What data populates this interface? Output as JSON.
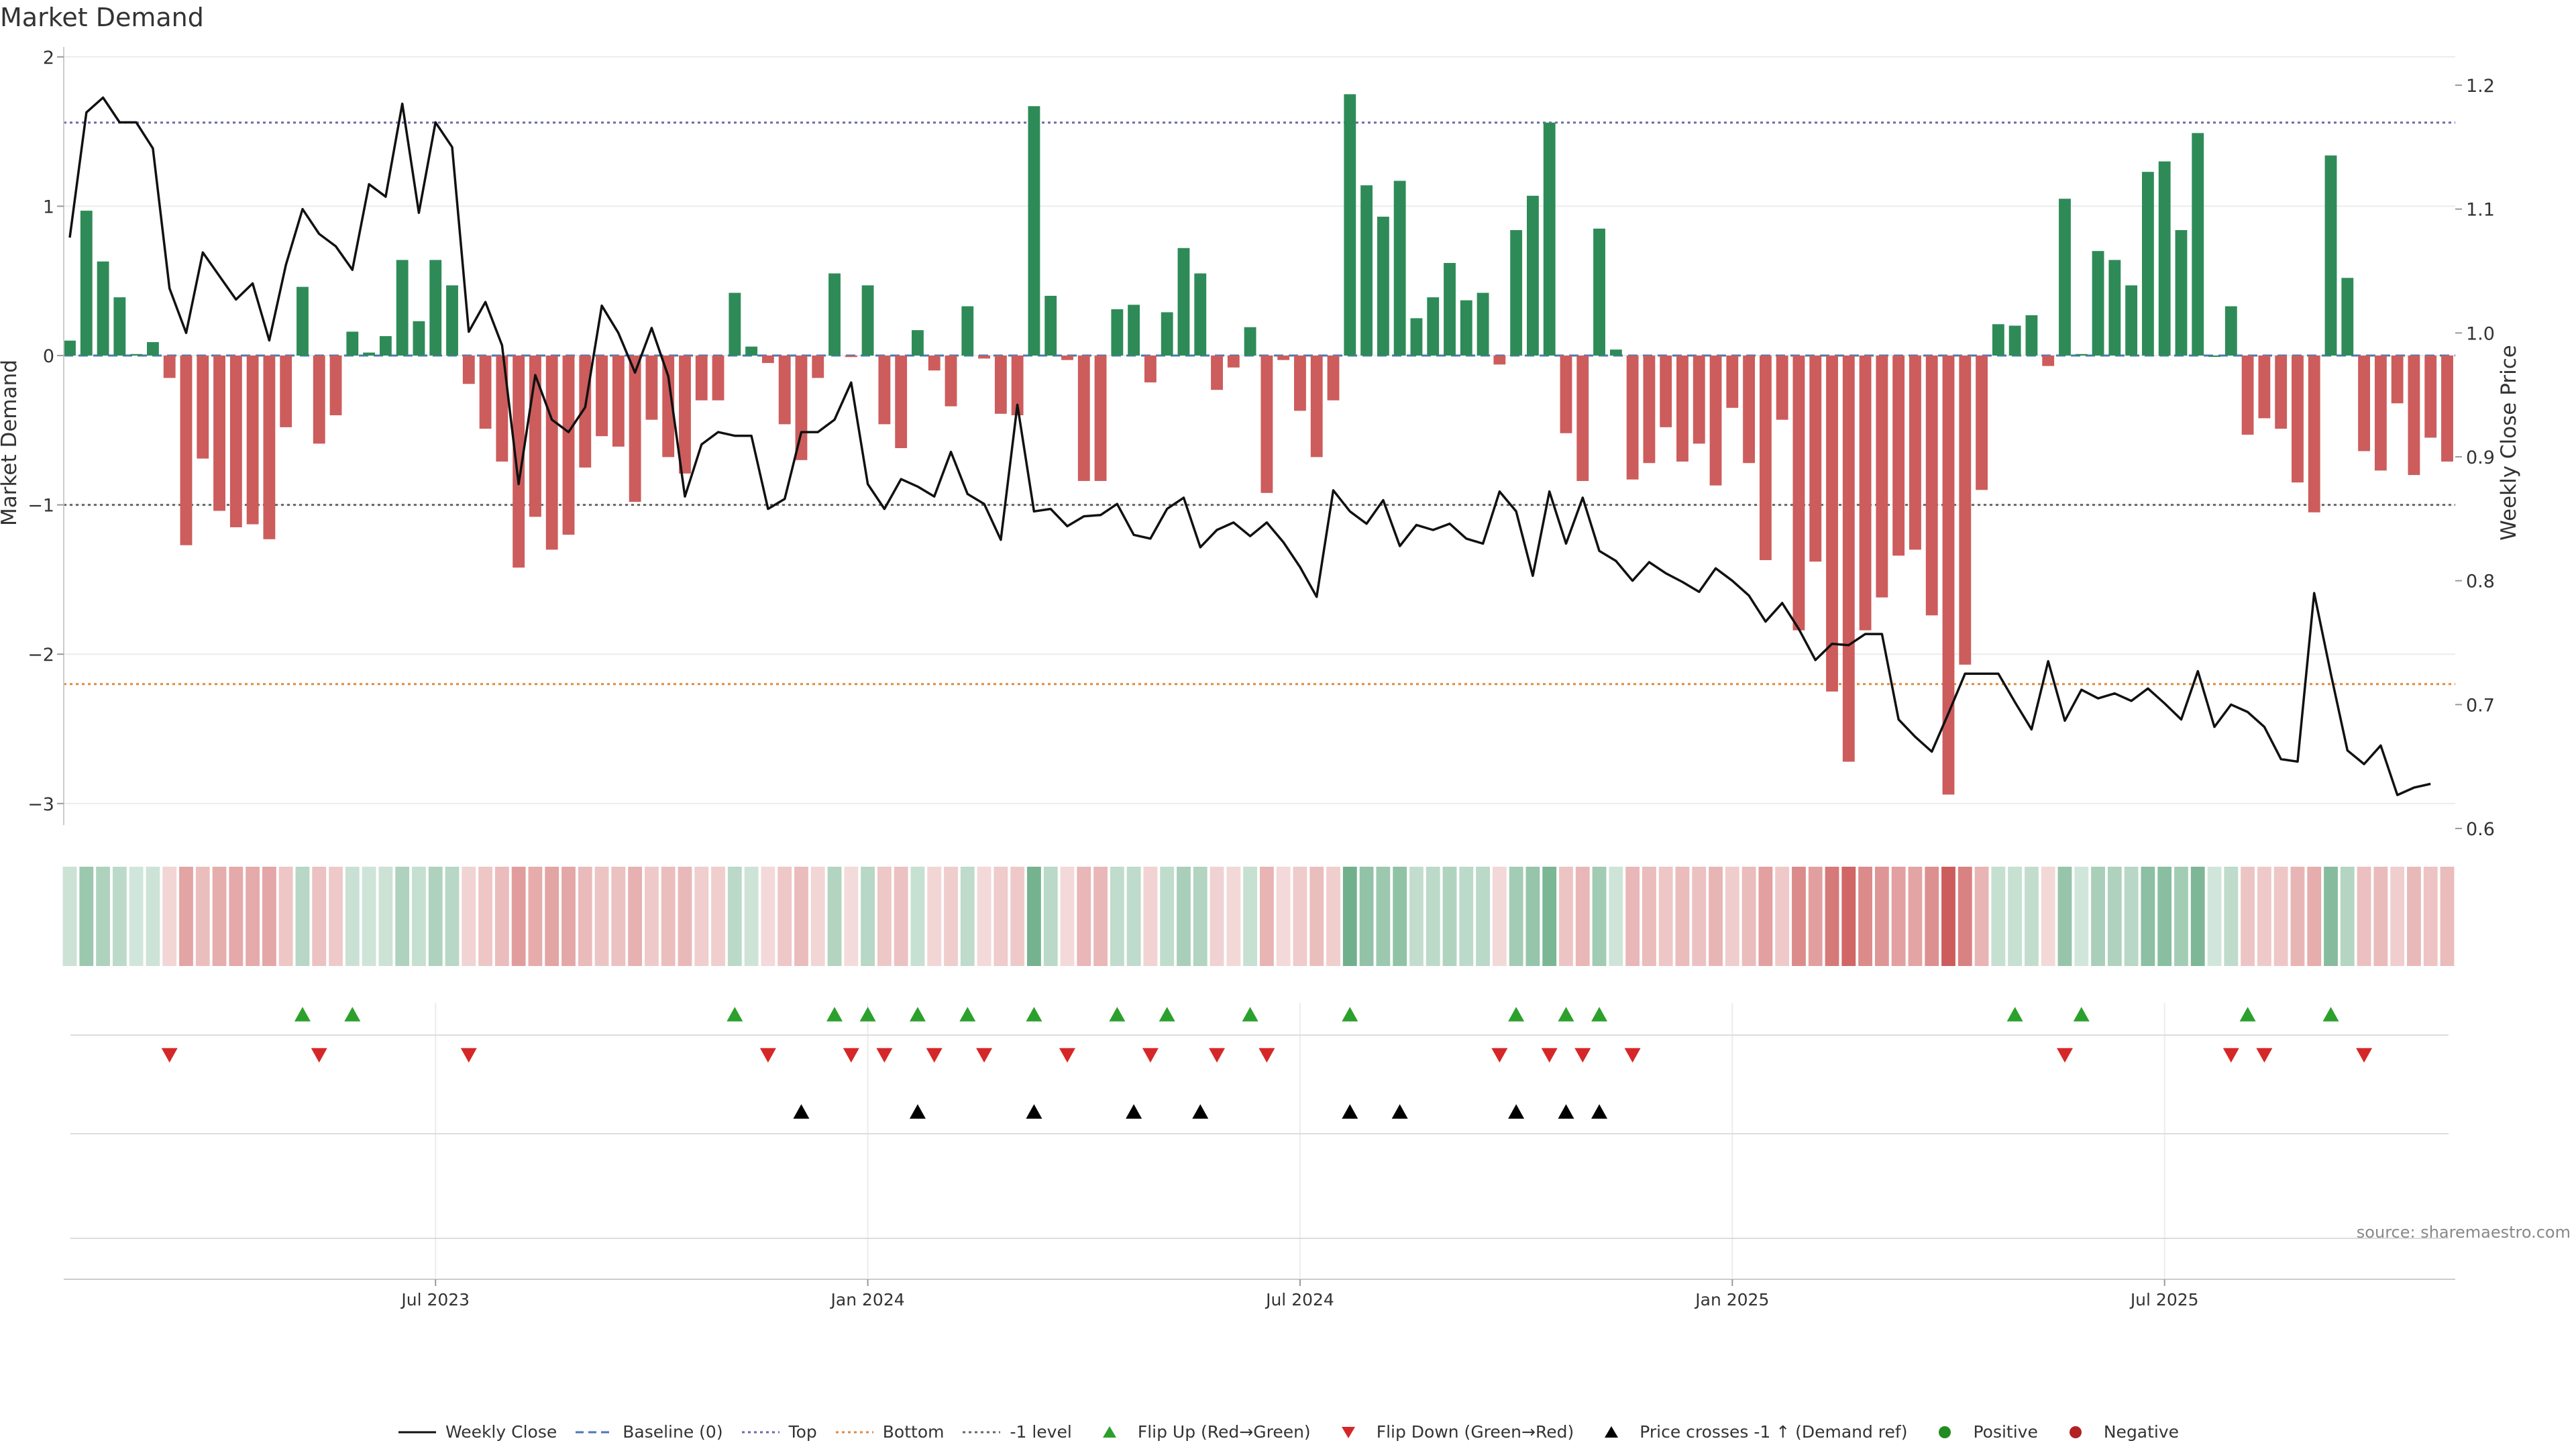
{
  "title": "Market Demand",
  "source": "source: sharemaestro.com",
  "colors": {
    "positive_bar": "#2e8b57",
    "negative_bar": "#cd5c5c",
    "line": "#111111",
    "top_line": "#6a6aa8",
    "bottom_line": "#e08a3c",
    "minus1_line": "#666666",
    "flip_up": "#2ca02c",
    "flip_down": "#d62728",
    "cross": "#000000",
    "positive_dot": "#228b22",
    "negative_dot": "#b22222"
  },
  "legend": [
    {
      "label": "Weekly Close",
      "kind": "line",
      "color": "#111111",
      "dash": "none"
    },
    {
      "label": "Baseline (0)",
      "kind": "line",
      "color": "#4a78b5",
      "dash": "dashed"
    },
    {
      "label": "Top",
      "kind": "line",
      "color": "#6a6aa8",
      "dash": "dotted"
    },
    {
      "label": "Bottom",
      "kind": "line",
      "color": "#e08a3c",
      "dash": "dotted"
    },
    {
      "label": "-1 level",
      "kind": "line",
      "color": "#666666",
      "dash": "dotted"
    },
    {
      "label": "Flip Up (Red→Green)",
      "kind": "tri-up",
      "color": "#2ca02c"
    },
    {
      "label": "Flip Down (Green→Red)",
      "kind": "tri-down",
      "color": "#d62728"
    },
    {
      "label": "Price crosses -1 ↑ (Demand ref)",
      "kind": "tri-up",
      "color": "#000000"
    },
    {
      "label": "Positive",
      "kind": "dot",
      "color": "#228b22"
    },
    {
      "label": "Negative",
      "kind": "dot",
      "color": "#b22222"
    }
  ],
  "chart_data": {
    "type": "bar",
    "x_tick_labels": [
      "Jul 2023",
      "Jan 2024",
      "Jul 2024",
      "Jan 2025",
      "Jul 2025"
    ],
    "x_tick_weeks": [
      22,
      48,
      74,
      100,
      126
    ],
    "ylabel_left": "Market Demand",
    "ylabel_right": "Weekly Close Price",
    "ylim_left": [
      -3.1,
      2.0
    ],
    "ylim_right": [
      0.6,
      1.23
    ],
    "yticks_left": [
      2,
      1,
      0,
      -1,
      -2,
      -3
    ],
    "yticks_right": [
      1.2,
      1.1,
      1.0,
      0.9,
      0.8,
      0.7,
      0.6
    ],
    "reference_levels": {
      "top": 1.56,
      "bottom": -2.2,
      "minus1": -1.0,
      "baseline": 0
    },
    "grid": true,
    "demand": [
      0.1,
      0.97,
      0.63,
      0.39,
      0.01,
      0.09,
      -0.15,
      -1.27,
      -0.69,
      -1.04,
      -1.15,
      -1.13,
      -1.23,
      -0.48,
      0.46,
      -0.59,
      -0.4,
      0.16,
      0.02,
      0.13,
      0.64,
      0.23,
      0.64,
      0.47,
      -0.19,
      -0.49,
      -0.71,
      -1.42,
      -1.08,
      -1.3,
      -1.2,
      -0.75,
      -0.54,
      -0.61,
      -0.98,
      -0.43,
      -0.68,
      -0.79,
      -0.3,
      -0.3,
      0.42,
      0.06,
      -0.05,
      -0.46,
      -0.7,
      -0.15,
      0.55,
      -0.01,
      0.47,
      -0.46,
      -0.62,
      0.17,
      -0.1,
      -0.34,
      0.33,
      -0.02,
      -0.39,
      -0.4,
      1.67,
      0.4,
      -0.03,
      -0.84,
      -0.84,
      0.31,
      0.34,
      -0.18,
      0.29,
      0.72,
      0.55,
      -0.23,
      -0.08,
      0.19,
      -0.92,
      -0.03,
      -0.37,
      -0.68,
      -0.3,
      1.75,
      1.14,
      0.93,
      1.17,
      0.25,
      0.39,
      0.62,
      0.37,
      0.42,
      -0.06,
      0.84,
      1.07,
      1.56,
      -0.52,
      -0.84,
      0.85,
      0.04,
      -0.83,
      -0.72,
      -0.48,
      -0.71,
      -0.59,
      -0.87,
      -0.35,
      -0.72,
      -1.37,
      -0.43,
      -1.84,
      -1.38,
      -2.25,
      -2.72,
      -1.84,
      -1.62,
      -1.34,
      -1.3,
      -1.74,
      -2.94,
      -2.07,
      -0.9,
      0.21,
      0.2,
      0.27,
      -0.07,
      1.05,
      0.01,
      0.7,
      0.64,
      0.47,
      1.23,
      1.3,
      0.84,
      1.49,
      0.0,
      0.33,
      -0.53,
      -0.42,
      -0.49,
      -0.85,
      -1.05,
      1.34,
      0.52,
      -0.64,
      -0.77,
      -0.32,
      -0.8,
      -0.55,
      -0.71
    ],
    "weekly_close": [
      1.077,
      1.178,
      1.19,
      1.17,
      1.17,
      1.149,
      1.036,
      1.0,
      1.065,
      1.046,
      1.027,
      1.04,
      0.994,
      1.055,
      1.1,
      1.08,
      1.07,
      1.051,
      1.12,
      1.11,
      1.185,
      1.097,
      1.17,
      1.15,
      1.001,
      1.025,
      0.99,
      0.878,
      0.966,
      0.93,
      0.92,
      0.94,
      1.022,
      1.0,
      0.968,
      1.004,
      0.965,
      0.868,
      0.91,
      0.92,
      0.917,
      0.917,
      0.858,
      0.866,
      0.92,
      0.92,
      0.93,
      0.96,
      0.878,
      0.858,
      0.882,
      0.876,
      0.868,
      0.904,
      0.87,
      0.862,
      0.833,
      0.942,
      0.856,
      0.858,
      0.844,
      0.852,
      0.853,
      0.862,
      0.837,
      0.834,
      0.858,
      0.867,
      0.827,
      0.841,
      0.847,
      0.836,
      0.847,
      0.831,
      0.811,
      0.787,
      0.873,
      0.856,
      0.846,
      0.865,
      0.828,
      0.845,
      0.841,
      0.846,
      0.834,
      0.83,
      0.872,
      0.856,
      0.804,
      0.872,
      0.83,
      0.867,
      0.824,
      0.816,
      0.8,
      0.815,
      0.806,
      0.799,
      0.791,
      0.81,
      0.8,
      0.788,
      0.767,
      0.782,
      0.761,
      0.736,
      0.749,
      0.748,
      0.757,
      0.757,
      0.688,
      0.674,
      0.662,
      0.693,
      0.725,
      0.725,
      0.725,
      0.702,
      0.68,
      0.735,
      0.687,
      0.712,
      0.705,
      0.709,
      0.703,
      0.713,
      0.701,
      0.688,
      0.727,
      0.682,
      0.7,
      0.694,
      0.682,
      0.656,
      0.654,
      0.79,
      0.725,
      0.663,
      0.652,
      0.667,
      0.627,
      0.633,
      0.636
    ],
    "flip_up_weeks": [
      14,
      17,
      40,
      46,
      48,
      51,
      54,
      58,
      63,
      66,
      71,
      77,
      87,
      90,
      92,
      117,
      121,
      131,
      136
    ],
    "flip_down_weeks": [
      6,
      15,
      24,
      42,
      47,
      49,
      52,
      55,
      60,
      65,
      69,
      72,
      86,
      89,
      91,
      94,
      120,
      130,
      132,
      138
    ],
    "cross_weeks": [
      44,
      51,
      58,
      64,
      68,
      77,
      80,
      87,
      90,
      92
    ]
  }
}
